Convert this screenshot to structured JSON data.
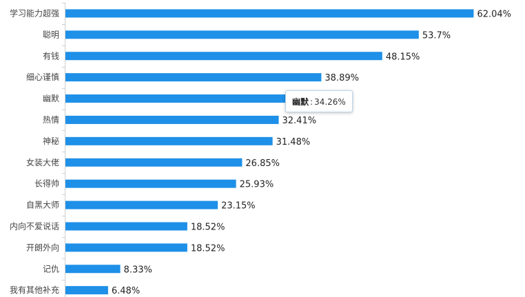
{
  "chart_data": {
    "type": "bar",
    "orientation": "horizontal",
    "categories": [
      "学习能力超强",
      "聪明",
      "有钱",
      "细心谨慎",
      "幽默",
      "热情",
      "神秘",
      "女装大佬",
      "长得帅",
      "自黑大师",
      "内向不爱说话",
      "开朗外向",
      "记仇",
      "我有其他补充"
    ],
    "values": [
      62.04,
      53.7,
      48.15,
      38.89,
      34.26,
      32.41,
      31.48,
      26.85,
      25.93,
      23.15,
      18.52,
      18.52,
      8.33,
      6.48
    ],
    "value_labels": [
      "62.04%",
      "53.7%",
      "48.15%",
      "38.89%",
      "34.26%",
      "32.41%",
      "31.48%",
      "26.85%",
      "25.93%",
      "23.15%",
      "18.52%",
      "18.52%",
      "8.33%",
      "6.48%"
    ],
    "bar_color": "#1e90e8",
    "grid": false,
    "legend": "none"
  },
  "tooltip": {
    "category": "幽默",
    "separator": ":",
    "value": "34.26%"
  }
}
